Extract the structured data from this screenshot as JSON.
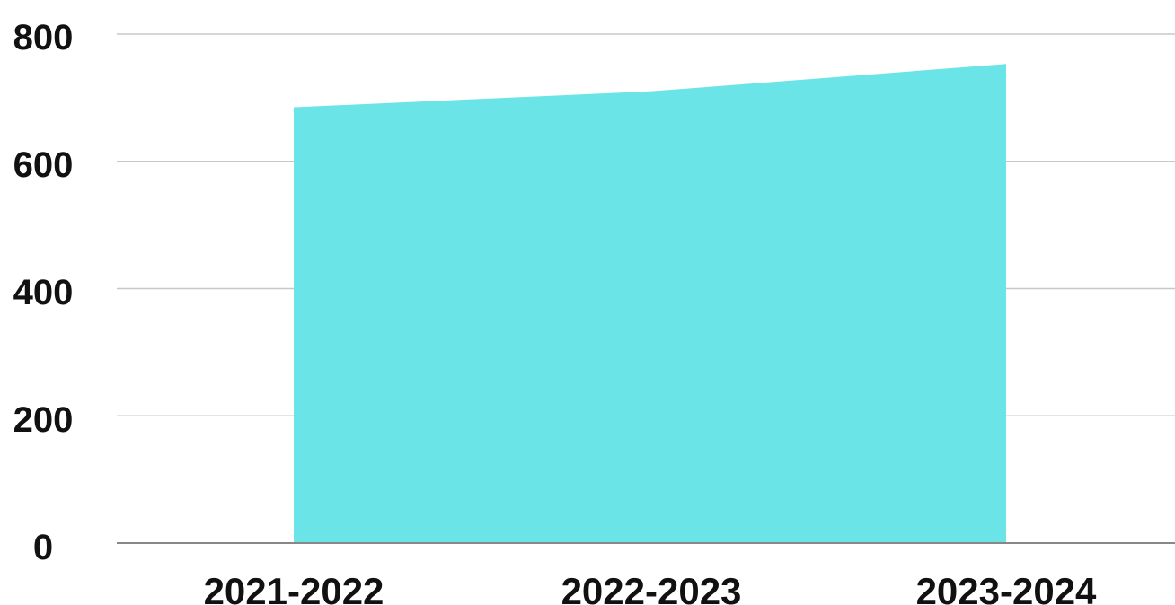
{
  "chart_data": {
    "type": "area",
    "categories": [
      "2021-2022",
      "2022-2023",
      "2023-2024"
    ],
    "series": [
      {
        "values": [
          685,
          710,
          753
        ]
      }
    ],
    "ylim": [
      0,
      800
    ],
    "y_ticks": [
      "0",
      "200",
      "400",
      "600",
      "800"
    ],
    "grid": true,
    "legend": "none",
    "colors": {
      "area": "#6BE4E8",
      "grid": "#C8C8C8",
      "axis": "#888888"
    }
  }
}
